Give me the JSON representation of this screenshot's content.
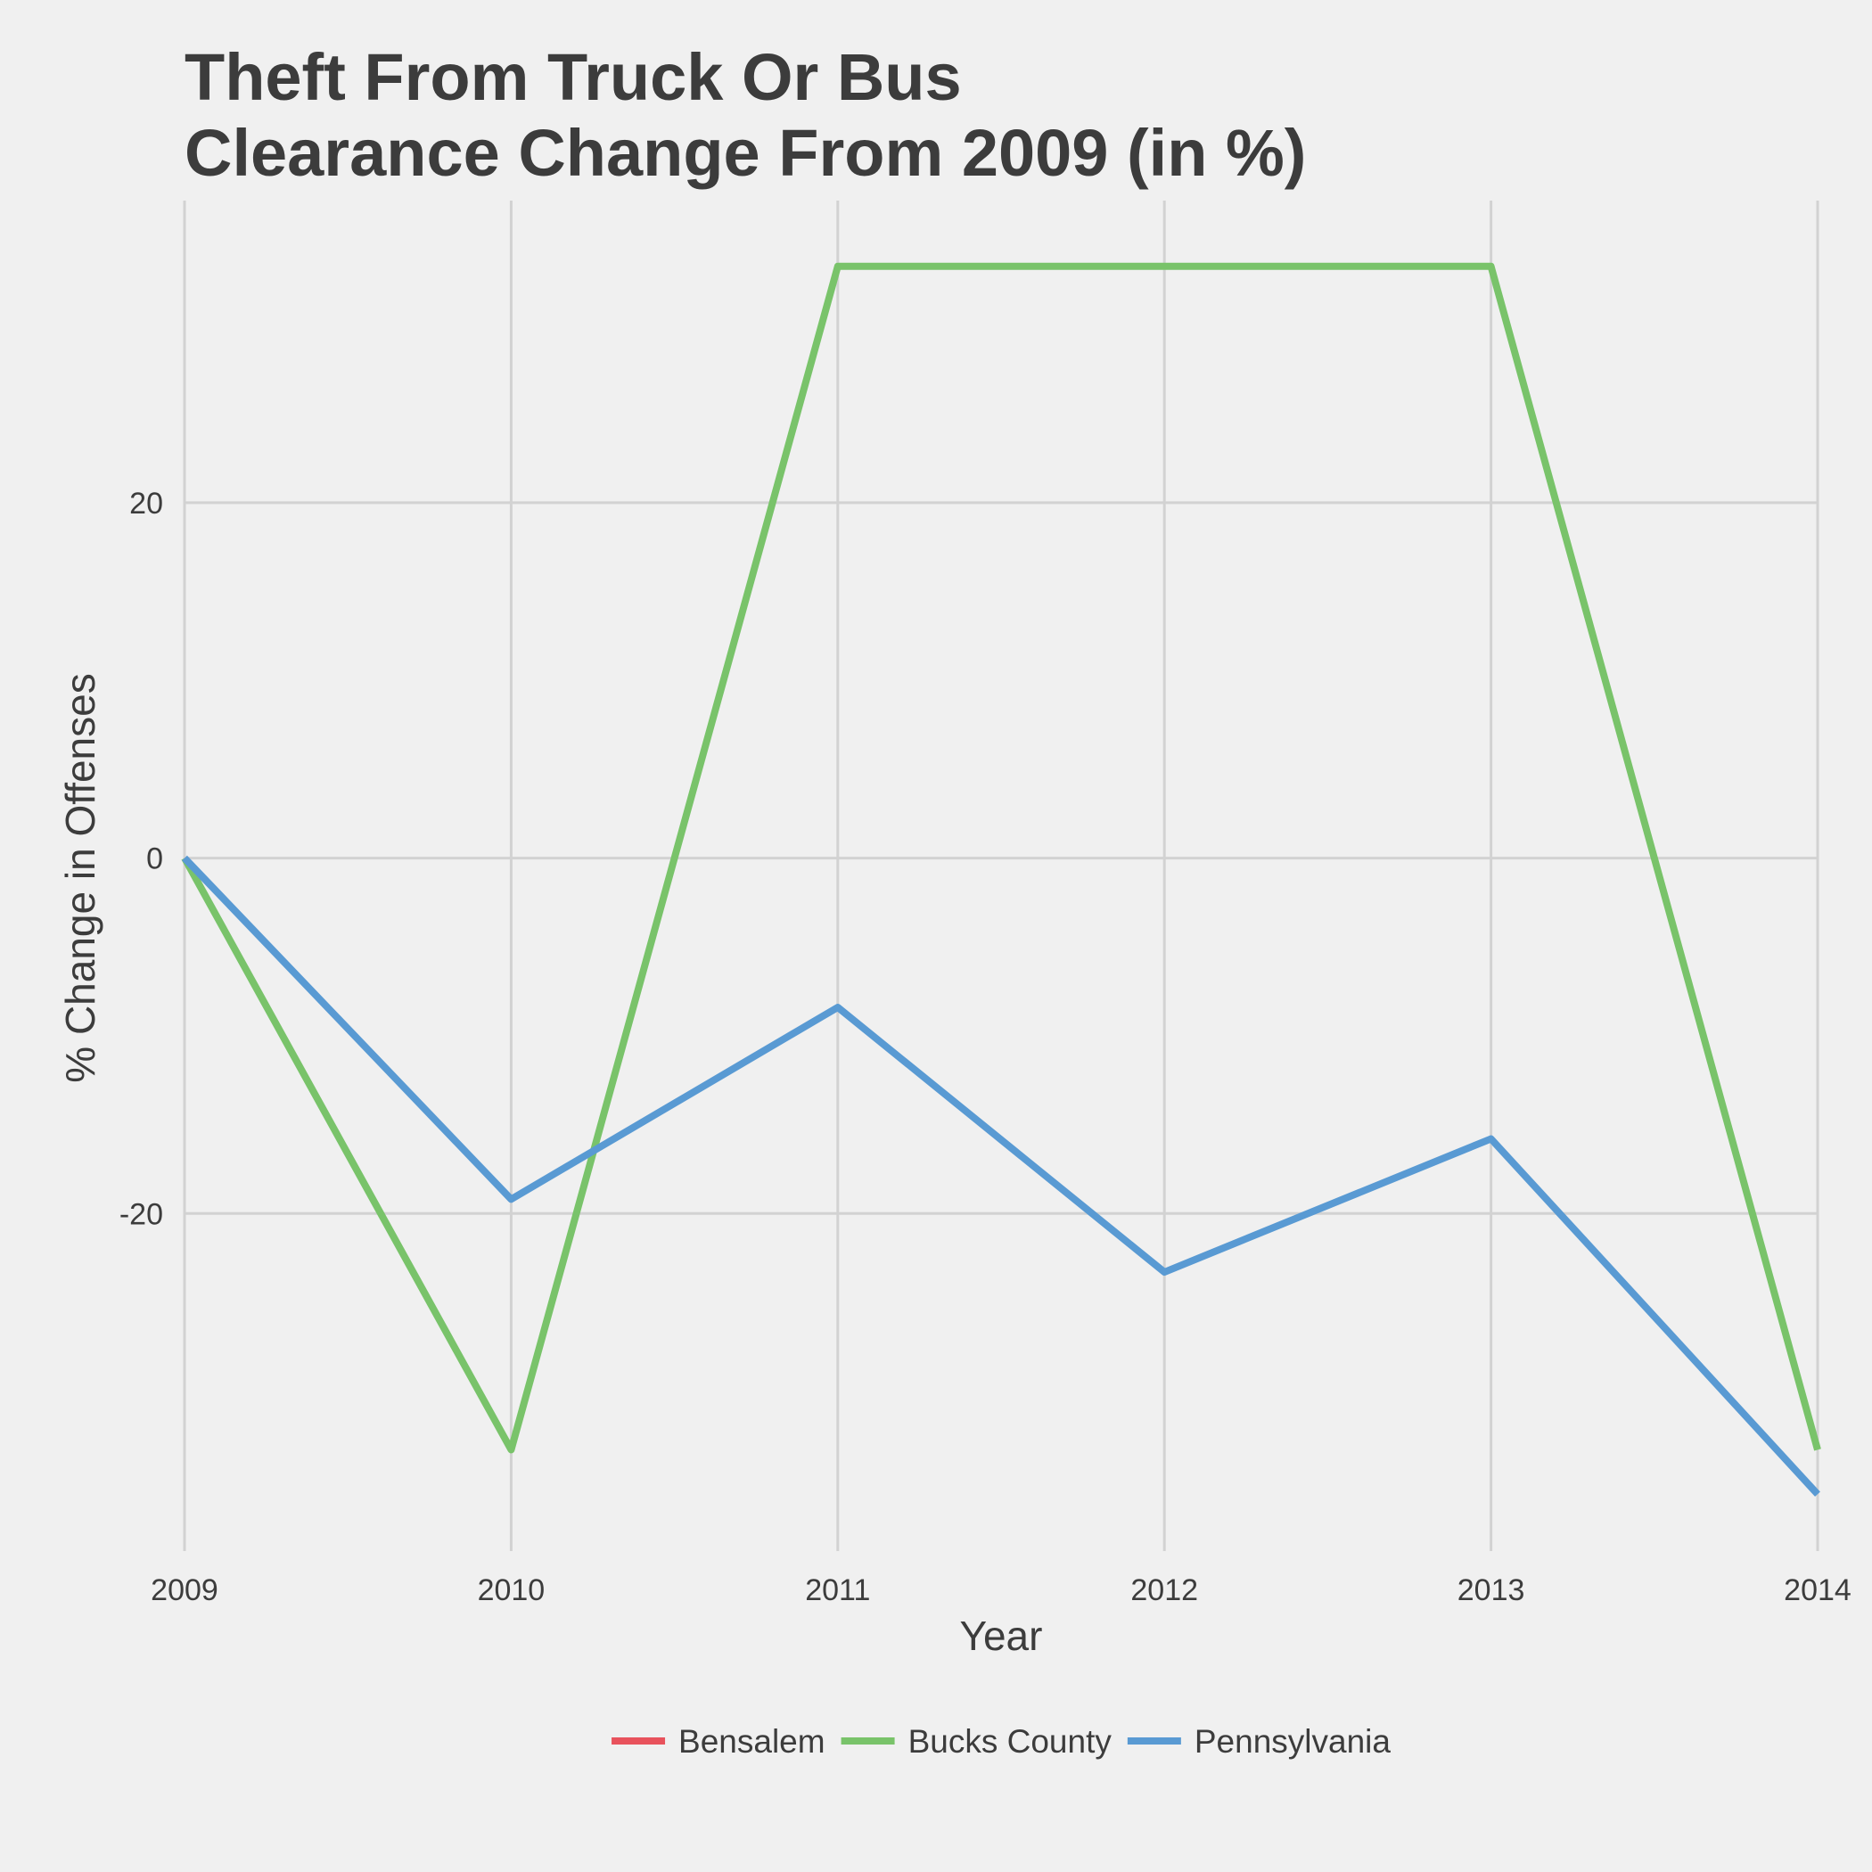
{
  "chart_data": {
    "type": "line",
    "title_lines": [
      "Theft From Truck Or Bus",
      "Clearance Change From 2009 (in %)"
    ],
    "xlabel": "Year",
    "ylabel": "% Change in Offenses",
    "x": [
      2009,
      2010,
      2011,
      2012,
      2013,
      2014
    ],
    "x_tick_labels": [
      "2009",
      "2010",
      "2011",
      "2012",
      "2013",
      "2014"
    ],
    "y_ticks": [
      -20,
      0,
      20
    ],
    "y_tick_labels": [
      "-20",
      "0",
      "20"
    ],
    "ylim": [
      -39,
      37
    ],
    "grid": true,
    "legend_position": "bottom",
    "series": [
      {
        "name": "Bensalem",
        "color": "#e8525c",
        "values": [
          null,
          null,
          null,
          null,
          null,
          null
        ]
      },
      {
        "name": "Bucks County",
        "color": "#79c36a",
        "values": [
          0,
          -33.3,
          33.3,
          33.3,
          33.3,
          -33.3
        ]
      },
      {
        "name": "Pennsylvania",
        "color": "#599ad3",
        "values": [
          0,
          -19.2,
          -8.4,
          -23.3,
          -15.8,
          -35.8
        ]
      }
    ]
  }
}
